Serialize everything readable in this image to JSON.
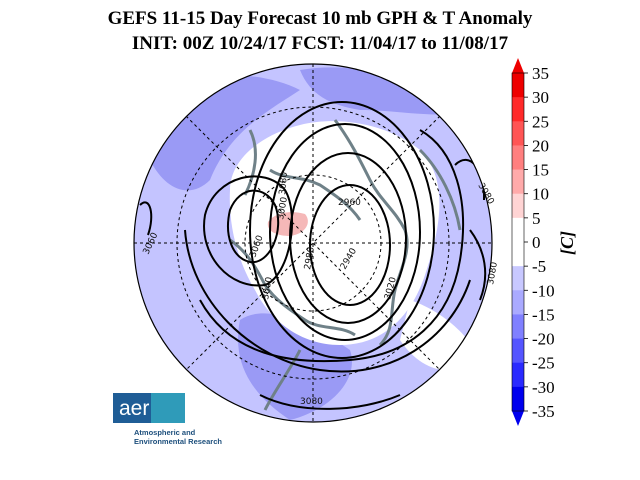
{
  "title": {
    "line1": "GEFS 11-15 Day Forecast 10 mb GPH & T Anomaly",
    "line2": "INIT: 00Z 10/24/17   FCST: 11/04/17 to 11/08/17"
  },
  "colorbar": {
    "unit_label": "[C]",
    "ticks": [
      "35",
      "30",
      "25",
      "20",
      "15",
      "10",
      "5",
      "0",
      "-5",
      "-10",
      "-15",
      "-20",
      "-25",
      "-30",
      "-35"
    ],
    "colors": [
      "#ee0000",
      "#ff2a2a",
      "#ff5555",
      "#ff7f7f",
      "#ffaaaa",
      "#ffd4d4",
      "#ffffff",
      "#ffffff",
      "#c8c8ff",
      "#aaaaff",
      "#8080ff",
      "#5555ff",
      "#2a2aff",
      "#0000ee"
    ]
  },
  "map": {
    "projection": "north polar stereographic",
    "colors": {
      "background": "#c4c4ff",
      "dark_anomaly": "#9a9af5",
      "neutral": "#ffffff",
      "warm": "#f5b8b8",
      "coastline": "#6f8188",
      "contour": "#000000"
    },
    "contour_labels": [
      "2960",
      "3060",
      "3000",
      "3040",
      "3080",
      "3020",
      "2980",
      "2940",
      "3080",
      "3080",
      "3080",
      "3060"
    ]
  },
  "logo": {
    "mark": "aer",
    "name_line1": "Atmospheric and",
    "name_line2": "Environmental Research"
  }
}
